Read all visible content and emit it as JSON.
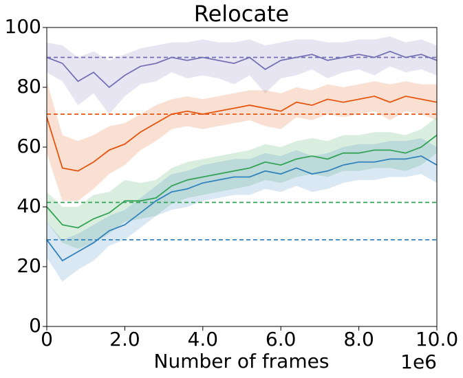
{
  "chart_data": {
    "type": "line",
    "title": "Relocate",
    "xlabel": "Number of frames",
    "x_offset_label": "1e6",
    "x": [
      0,
      0.4,
      0.8,
      1.2,
      1.6,
      2.0,
      2.4,
      2.8,
      3.2,
      3.6,
      4.0,
      4.4,
      4.8,
      5.2,
      5.6,
      6.0,
      6.4,
      6.8,
      7.2,
      7.6,
      8.0,
      8.4,
      8.8,
      9.2,
      9.6,
      10.0
    ],
    "series": [
      {
        "color": "#7570b3",
        "baseline": 90,
        "values": [
          90,
          88,
          82,
          85,
          80,
          84,
          87,
          88,
          90,
          89,
          90,
          89,
          88,
          90,
          86,
          89,
          90,
          91,
          89,
          90,
          91,
          90,
          92,
          90,
          91,
          89
        ],
        "errors": [
          5,
          6,
          8,
          7,
          9,
          7,
          6,
          6,
          5,
          6,
          6,
          6,
          7,
          6,
          8,
          6,
          6,
          5,
          6,
          5,
          5,
          6,
          5,
          5,
          5,
          5
        ]
      },
      {
        "color": "#e6550d",
        "baseline": 71,
        "values": [
          70,
          53,
          52,
          55,
          59,
          61,
          65,
          68,
          71,
          72,
          71,
          72,
          73,
          74,
          73,
          72,
          75,
          74,
          76,
          75,
          76,
          77,
          75,
          77,
          76,
          75
        ],
        "errors": [
          12,
          11,
          10,
          9,
          8,
          7,
          6,
          6,
          5,
          5,
          5,
          5,
          5,
          5,
          6,
          6,
          5,
          5,
          5,
          5,
          5,
          5,
          6,
          5,
          5,
          6
        ]
      },
      {
        "color": "#31a354",
        "baseline": 41.5,
        "values": [
          40,
          34,
          33,
          36,
          38,
          42,
          42,
          43,
          47,
          49,
          50,
          51,
          52,
          53,
          55,
          54,
          56,
          57,
          56,
          58,
          58,
          59,
          59,
          58,
          60,
          64
        ],
        "errors": [
          5,
          6,
          7,
          8,
          7,
          7,
          6,
          6,
          6,
          6,
          6,
          6,
          6,
          6,
          6,
          6,
          6,
          6,
          6,
          6,
          6,
          6,
          6,
          6,
          6,
          6
        ]
      },
      {
        "color": "#3182bd",
        "baseline": 29,
        "values": [
          29,
          22,
          25,
          28,
          32,
          34,
          38,
          42,
          45,
          46,
          48,
          49,
          50,
          50,
          52,
          51,
          53,
          51,
          52,
          54,
          55,
          55,
          56,
          56,
          57,
          54
        ],
        "errors": [
          6,
          7,
          6,
          6,
          5,
          5,
          5,
          5,
          6,
          6,
          6,
          6,
          6,
          6,
          6,
          6,
          6,
          6,
          6,
          6,
          6,
          6,
          6,
          6,
          6,
          6
        ]
      }
    ],
    "xlim": [
      0,
      10
    ],
    "ylim": [
      0,
      100
    ],
    "xticks": [
      0,
      {
        "value": 2,
        "label": "2.0"
      },
      {
        "value": 4,
        "label": "4.0"
      },
      {
        "value": 6,
        "label": "6.0"
      },
      {
        "value": 8,
        "label": "8.0"
      },
      {
        "value": 10,
        "label": "10.0"
      }
    ],
    "yticks": [
      0,
      20,
      40,
      60,
      80,
      100
    ]
  }
}
